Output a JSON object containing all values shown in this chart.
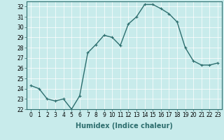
{
  "x": [
    0,
    1,
    2,
    3,
    4,
    5,
    6,
    7,
    8,
    9,
    10,
    11,
    12,
    13,
    14,
    15,
    16,
    17,
    18,
    19,
    20,
    21,
    22,
    23
  ],
  "y": [
    24.3,
    24.0,
    23.0,
    22.8,
    23.0,
    22.0,
    23.3,
    27.5,
    28.3,
    29.2,
    29.0,
    28.2,
    30.3,
    31.0,
    32.2,
    32.2,
    31.8,
    31.3,
    30.5,
    28.0,
    26.7,
    26.3,
    26.3,
    26.5
  ],
  "line_color": "#2d6e6e",
  "marker": "+",
  "marker_size": 3,
  "bg_color": "#c8ebeb",
  "grid_color": "#d4a0a0",
  "grid_color_main": "#ffffff",
  "xlabel": "Humidex (Indice chaleur)",
  "ylim": [
    22,
    32.5
  ],
  "xlim": [
    -0.5,
    23.5
  ],
  "yticks": [
    22,
    23,
    24,
    25,
    26,
    27,
    28,
    29,
    30,
    31,
    32
  ],
  "xticks": [
    0,
    1,
    2,
    3,
    4,
    5,
    6,
    7,
    8,
    9,
    10,
    11,
    12,
    13,
    14,
    15,
    16,
    17,
    18,
    19,
    20,
    21,
    22,
    23
  ],
  "tick_label_fontsize": 5.5,
  "xlabel_fontsize": 7,
  "line_width": 1.0
}
